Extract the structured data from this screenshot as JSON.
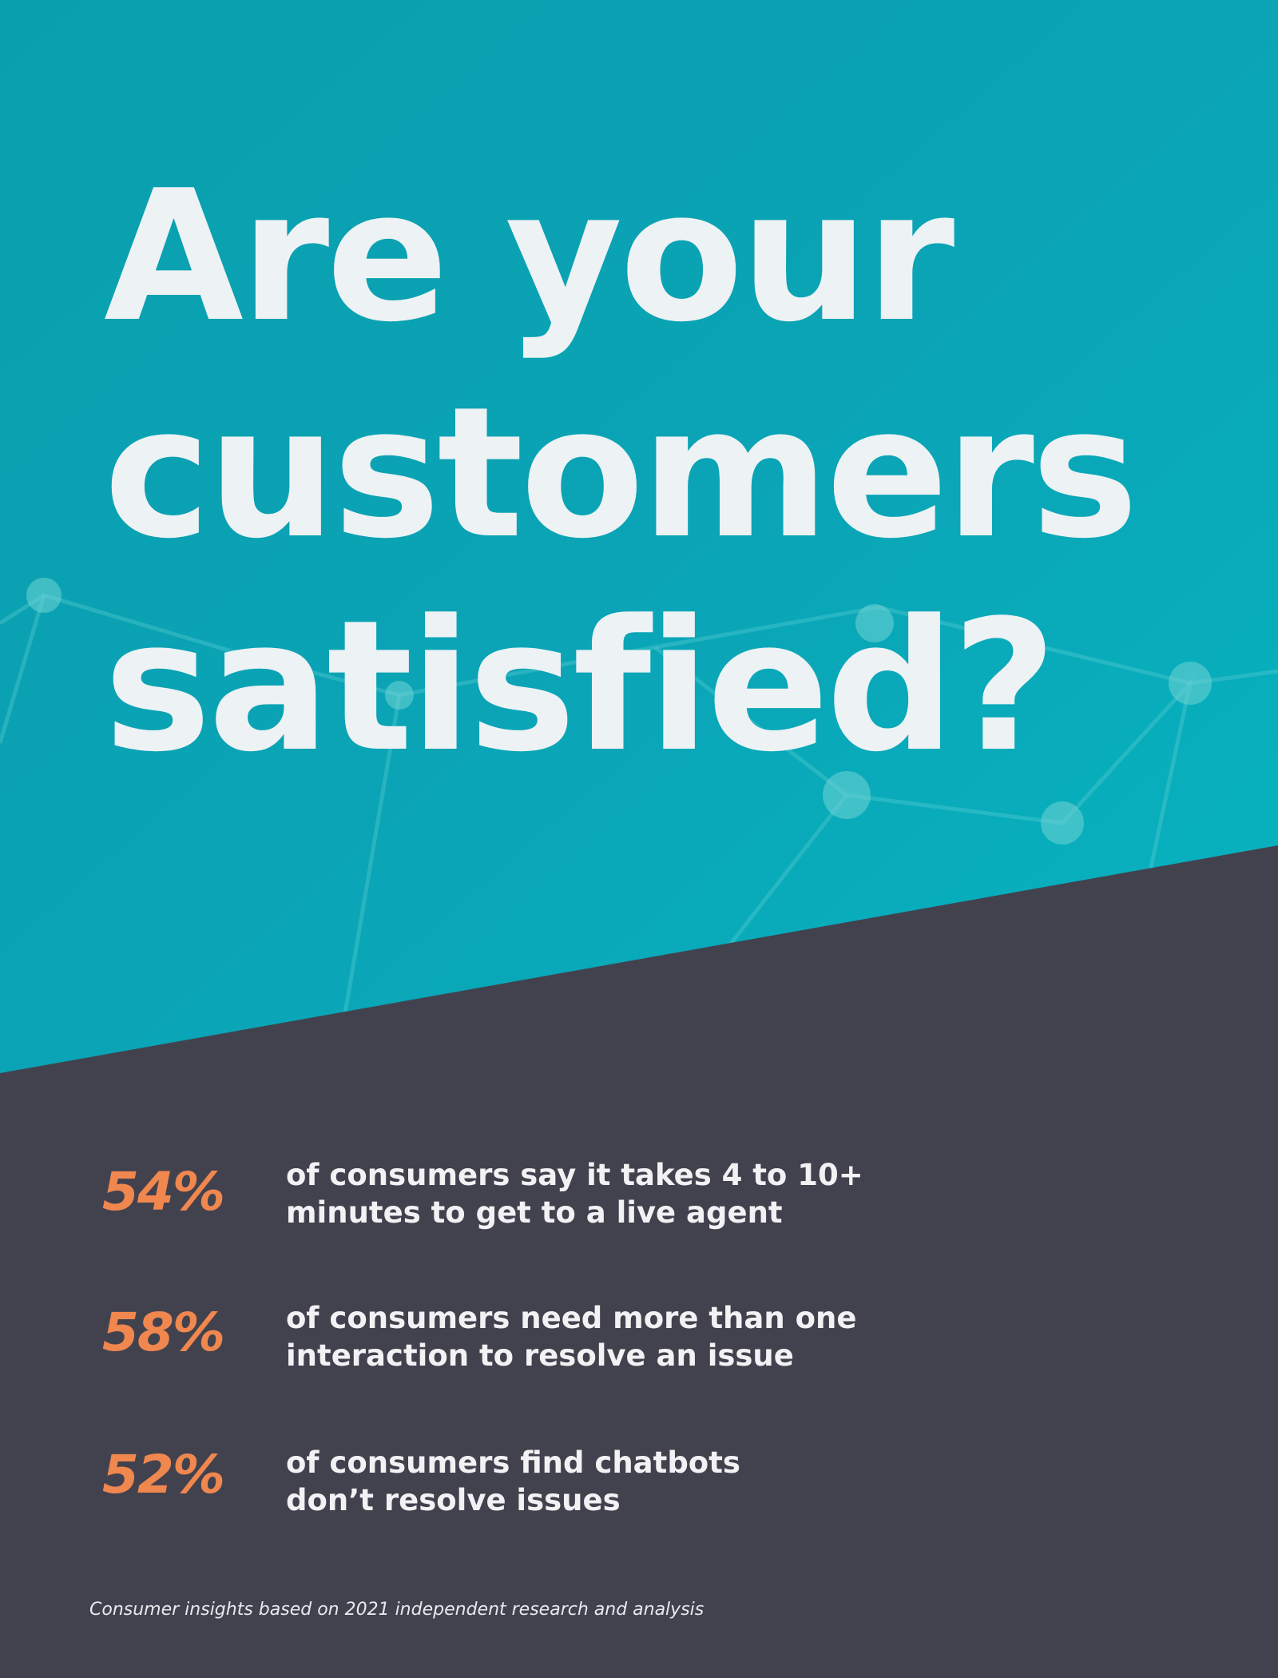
{
  "headline": {
    "lines": [
      "Are your",
      "customers",
      "satisfied?"
    ]
  },
  "stats": [
    {
      "value": "54%",
      "text_lines": [
        "of consumers say it takes 4 to 10+",
        "minutes to get to a live agent"
      ]
    },
    {
      "value": "58%",
      "text_lines": [
        "of consumers need more than one",
        "interaction to resolve an issue"
      ]
    },
    {
      "value": "52%",
      "text_lines": [
        "of consumers find chatbots",
        "don’t resolve issues"
      ]
    }
  ],
  "footnote": "Consumer insights based on 2021 independent research and analysis"
}
